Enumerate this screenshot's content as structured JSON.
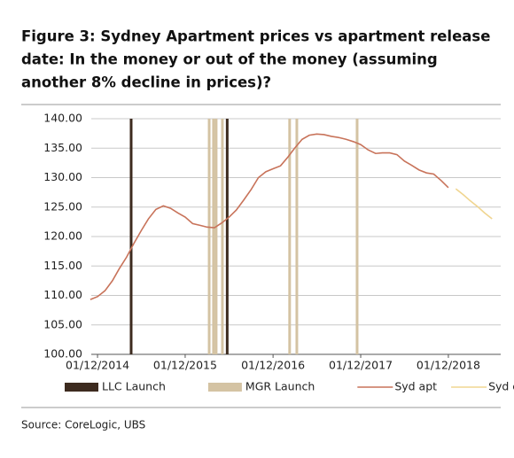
{
  "chart_data": {
    "type": "line",
    "title_lines": [
      "Figure 3: Sydney Apartment prices vs apartment release",
      "date: In the money or out of the money (assuming",
      "another 8% decline in prices)?"
    ],
    "source": "Source:  CoreLogic, UBS",
    "xlim": [
      "05/11/2014",
      "07/07/2019"
    ],
    "xticks": [
      "01/12/2014",
      "01/12/2015",
      "01/12/2016",
      "01/12/2017",
      "01/12/2018"
    ],
    "ylim": [
      100,
      140
    ],
    "yticks": [
      {
        "value": 100,
        "label": "100.00"
      },
      {
        "value": 105,
        "label": "105.00"
      },
      {
        "value": 110,
        "label": "110.00"
      },
      {
        "value": 115,
        "label": "115.00"
      },
      {
        "value": 120,
        "label": "120.00"
      },
      {
        "value": 125,
        "label": "125.00"
      },
      {
        "value": 130,
        "label": "130.00"
      },
      {
        "value": 135,
        "label": "135.00"
      },
      {
        "value": 140,
        "label": "140.00"
      }
    ],
    "grid": true,
    "launches": [
      {
        "name": "LLC Launch",
        "color": "#3d2b1f",
        "dates": [
          "20/04/2015",
          "24/05/2016"
        ]
      },
      {
        "name": "MGR Launch",
        "color": "#d4c3a3",
        "dates": [
          "10/03/2016",
          "28/03/2016",
          "08/04/2016",
          "04/05/2016",
          "08/02/2017",
          "10/03/2017",
          "16/11/2017"
        ]
      }
    ],
    "series": [
      {
        "name": "Syd apt",
        "color": "#c8735a",
        "x": [
          "01/11/2014",
          "01/12/2014",
          "01/01/2015",
          "01/02/2015",
          "01/03/2015",
          "01/04/2015",
          "01/05/2015",
          "01/06/2015",
          "01/07/2015",
          "01/08/2015",
          "01/09/2015",
          "01/10/2015",
          "01/11/2015",
          "01/12/2015",
          "01/01/2016",
          "01/02/2016",
          "01/03/2016",
          "01/04/2016",
          "01/05/2016",
          "01/06/2016",
          "01/07/2016",
          "01/08/2016",
          "01/09/2016",
          "01/10/2016",
          "01/11/2016",
          "01/12/2016",
          "01/01/2017",
          "01/02/2017",
          "01/03/2017",
          "01/04/2017",
          "01/05/2017",
          "01/06/2017",
          "01/07/2017",
          "01/08/2017",
          "01/09/2017",
          "01/10/2017",
          "01/11/2017",
          "01/12/2017",
          "01/01/2018",
          "01/02/2018",
          "01/03/2018",
          "01/04/2018",
          "01/05/2018",
          "01/06/2018",
          "01/07/2018",
          "01/08/2018",
          "01/09/2018",
          "01/10/2018",
          "01/11/2018",
          "01/12/2018"
        ],
        "values": [
          109.3,
          109.8,
          110.8,
          112.5,
          114.5,
          116.5,
          118.8,
          121,
          123,
          124.6,
          125.2,
          124.8,
          124,
          123.3,
          122.2,
          121.9,
          121.6,
          121.5,
          122.3,
          123.3,
          124.5,
          126.2,
          128,
          130,
          131,
          131.5,
          132,
          133.5,
          135,
          136.5,
          137.2,
          137.4,
          137.3,
          137,
          136.8,
          136.5,
          136.1,
          135.6,
          134.7,
          134.1,
          134.2,
          134.2,
          133.9,
          132.8,
          132.1,
          131.3,
          130.8,
          130.6,
          129.5,
          128.3
        ]
      },
      {
        "name": "Syd est",
        "color": "#f0d590",
        "x": [
          "01/01/2019",
          "01/02/2019",
          "01/03/2019",
          "01/04/2019",
          "01/05/2019",
          "01/06/2019"
        ],
        "values": [
          128.1,
          127.1,
          126.1,
          125.1,
          124,
          123
        ]
      }
    ]
  }
}
